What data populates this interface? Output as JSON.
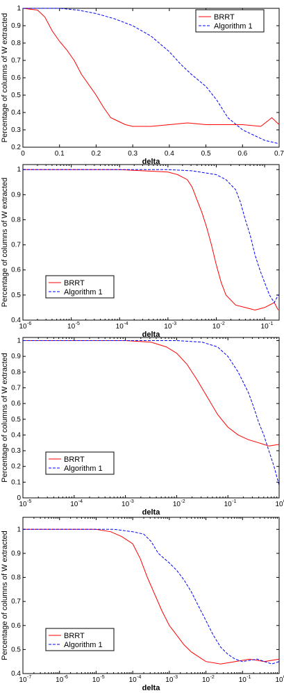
{
  "chart_data": [
    {
      "type": "line",
      "xscale": "linear",
      "xlim": [
        0,
        0.7
      ],
      "ylim": [
        0.2,
        1
      ],
      "xticks": [
        0,
        0.1,
        0.2,
        0.3,
        0.4,
        0.5,
        0.6,
        0.7
      ],
      "xtick_labels": [
        "0",
        "0.1",
        "0.2",
        "0.3",
        "0.4",
        "0.5",
        "0.6",
        "0.7"
      ],
      "yticks": [
        0.2,
        0.3,
        0.4,
        0.5,
        0.6,
        0.7,
        0.8,
        0.9,
        1
      ],
      "ytick_labels": [
        "0.2",
        "0.3",
        "0.4",
        "0.5",
        "0.6",
        "0.7",
        "0.8",
        "0.9",
        "1"
      ],
      "xlabel": "delta",
      "ylabel": "Percentage of columns of W extracted",
      "legend_position": "top-right",
      "series": [
        {
          "name": "BRRT",
          "color": "#ff0000",
          "dash": "solid",
          "x": [
            0,
            0.04,
            0.06,
            0.08,
            0.1,
            0.12,
            0.14,
            0.16,
            0.18,
            0.2,
            0.22,
            0.24,
            0.26,
            0.28,
            0.3,
            0.35,
            0.4,
            0.45,
            0.5,
            0.55,
            0.6,
            0.65,
            0.68,
            0.7
          ],
          "y": [
            1,
            0.99,
            0.95,
            0.87,
            0.81,
            0.76,
            0.7,
            0.62,
            0.56,
            0.5,
            0.43,
            0.37,
            0.35,
            0.33,
            0.32,
            0.32,
            0.33,
            0.34,
            0.33,
            0.33,
            0.33,
            0.32,
            0.37,
            0.33
          ]
        },
        {
          "name": "Algorithm 1",
          "color": "#0000ff",
          "dash": "dashed",
          "x": [
            0,
            0.1,
            0.15,
            0.2,
            0.25,
            0.3,
            0.35,
            0.4,
            0.43,
            0.46,
            0.5,
            0.53,
            0.56,
            0.6,
            0.63,
            0.66,
            0.7
          ],
          "y": [
            1,
            1,
            0.99,
            0.97,
            0.94,
            0.9,
            0.84,
            0.75,
            0.68,
            0.62,
            0.55,
            0.47,
            0.37,
            0.3,
            0.27,
            0.24,
            0.22
          ]
        }
      ]
    },
    {
      "type": "line",
      "xscale": "log",
      "xlim": [
        -6,
        -0.7
      ],
      "ylim": [
        0.4,
        1.02
      ],
      "xticks": [
        -6,
        -5,
        -4,
        -3,
        -2,
        -1
      ],
      "xtick_labels": [
        "10",
        "10",
        "10",
        "10",
        "10",
        "10"
      ],
      "xtick_exponents": [
        "-6",
        "-5",
        "-4",
        "-3",
        "-2",
        "-1"
      ],
      "yticks": [
        0.4,
        0.5,
        0.6,
        0.7,
        0.8,
        0.9,
        1
      ],
      "ytick_labels": [
        "0.4",
        "0.5",
        "0.6",
        "0.7",
        "0.8",
        "0.9",
        "1"
      ],
      "xlabel": "delta",
      "ylabel": "Percentage of columns of W extracted",
      "legend_position": "bottom-left",
      "series": [
        {
          "name": "BRRT",
          "color": "#ff0000",
          "dash": "solid",
          "x": [
            -6,
            -4,
            -3.5,
            -3,
            -2.8,
            -2.6,
            -2.5,
            -2.4,
            -2.3,
            -2.2,
            -2.1,
            -2,
            -1.9,
            -1.8,
            -1.6,
            -1.4,
            -1.2,
            -1,
            -0.8,
            -0.72
          ],
          "y": [
            1,
            1,
            0.995,
            0.99,
            0.98,
            0.96,
            0.93,
            0.88,
            0.83,
            0.77,
            0.7,
            0.62,
            0.55,
            0.5,
            0.46,
            0.45,
            0.44,
            0.45,
            0.47,
            0.44
          ]
        },
        {
          "name": "Algorithm 1",
          "color": "#0000ff",
          "dash": "dashed",
          "x": [
            -6,
            -3,
            -2.5,
            -2,
            -1.8,
            -1.6,
            -1.5,
            -1.4,
            -1.3,
            -1.2,
            -1.1,
            -1,
            -0.9,
            -0.8,
            -0.72
          ],
          "y": [
            1,
            1,
            0.995,
            0.98,
            0.96,
            0.92,
            0.87,
            0.8,
            0.74,
            0.66,
            0.6,
            0.55,
            0.5,
            0.47,
            0.5
          ]
        }
      ]
    },
    {
      "type": "line",
      "xscale": "log",
      "xlim": [
        -5,
        0
      ],
      "ylim": [
        0,
        1.02
      ],
      "xticks": [
        -5,
        -4,
        -3,
        -2,
        -1,
        0
      ],
      "xtick_labels": [
        "10",
        "10",
        "10",
        "10",
        "10",
        "10"
      ],
      "xtick_exponents": [
        "-5",
        "-4",
        "-3",
        "-2",
        "-1",
        "0"
      ],
      "yticks": [
        0,
        0.1,
        0.2,
        0.3,
        0.4,
        0.5,
        0.6,
        0.7,
        0.8,
        0.9,
        1
      ],
      "ytick_labels": [
        "0",
        "0.1",
        "0.2",
        "0.3",
        "0.4",
        "0.5",
        "0.6",
        "0.7",
        "0.8",
        "0.9",
        "1"
      ],
      "xlabel": "delta",
      "ylabel": "Percentage of columns of W extracted",
      "legend_position": "bottom-left",
      "series": [
        {
          "name": "BRRT",
          "color": "#ff0000",
          "dash": "solid",
          "x": [
            -5,
            -3,
            -2.5,
            -2.2,
            -2,
            -1.8,
            -1.6,
            -1.4,
            -1.2,
            -1,
            -0.8,
            -0.6,
            -0.4,
            -0.2,
            0
          ],
          "y": [
            1,
            1,
            0.99,
            0.96,
            0.92,
            0.85,
            0.75,
            0.64,
            0.53,
            0.45,
            0.4,
            0.37,
            0.35,
            0.33,
            0.34
          ]
        },
        {
          "name": "Algorithm 1",
          "color": "#0000ff",
          "dash": "dashed",
          "x": [
            -5,
            -2,
            -1.5,
            -1.2,
            -1,
            -0.8,
            -0.6,
            -0.5,
            -0.4,
            -0.3,
            -0.2,
            -0.1,
            0
          ],
          "y": [
            1,
            1,
            0.99,
            0.96,
            0.9,
            0.8,
            0.67,
            0.58,
            0.48,
            0.4,
            0.3,
            0.2,
            0.08
          ]
        }
      ]
    },
    {
      "type": "line",
      "xscale": "log",
      "xlim": [
        -7,
        0
      ],
      "ylim": [
        0.4,
        1.05
      ],
      "xticks": [
        -7,
        -6,
        -5,
        -4,
        -3,
        -2,
        -1,
        0
      ],
      "xtick_labels": [
        "10",
        "10",
        "10",
        "10",
        "10",
        "10",
        "10",
        "10"
      ],
      "xtick_exponents": [
        "-7",
        "-6",
        "-5",
        "-4",
        "-3",
        "-2",
        "-1",
        "0"
      ],
      "yticks": [
        0.4,
        0.5,
        0.6,
        0.7,
        0.8,
        0.9,
        1
      ],
      "ytick_labels": [
        "0.4",
        "0.5",
        "0.6",
        "0.7",
        "0.8",
        "0.9",
        "1"
      ],
      "xlabel": "delta",
      "ylabel": "Percentage of columns of W extracted",
      "legend_position": "bottom-left",
      "series": [
        {
          "name": "BRRT",
          "color": "#ff0000",
          "dash": "solid",
          "x": [
            -7,
            -5,
            -4.6,
            -4.3,
            -4,
            -3.8,
            -3.6,
            -3.4,
            -3.2,
            -3,
            -2.8,
            -2.6,
            -2.4,
            -2.2,
            -2,
            -1.6,
            -1.2,
            -0.8,
            -0.4,
            0
          ],
          "y": [
            1,
            1,
            0.99,
            0.97,
            0.94,
            0.88,
            0.8,
            0.73,
            0.66,
            0.6,
            0.56,
            0.52,
            0.49,
            0.47,
            0.45,
            0.44,
            0.45,
            0.46,
            0.45,
            0.46
          ]
        },
        {
          "name": "Algorithm 1",
          "color": "#0000ff",
          "dash": "dashed",
          "x": [
            -7,
            -4.5,
            -4,
            -3.7,
            -3.5,
            -3.3,
            -3,
            -2.8,
            -2.6,
            -2.4,
            -2.2,
            -2,
            -1.8,
            -1.6,
            -1.4,
            -1.2,
            -1,
            -0.6,
            -0.2,
            0
          ],
          "y": [
            1,
            1,
            0.99,
            0.98,
            0.95,
            0.9,
            0.86,
            0.83,
            0.79,
            0.74,
            0.68,
            0.62,
            0.56,
            0.51,
            0.48,
            0.46,
            0.45,
            0.46,
            0.44,
            0.45
          ]
        }
      ]
    }
  ]
}
